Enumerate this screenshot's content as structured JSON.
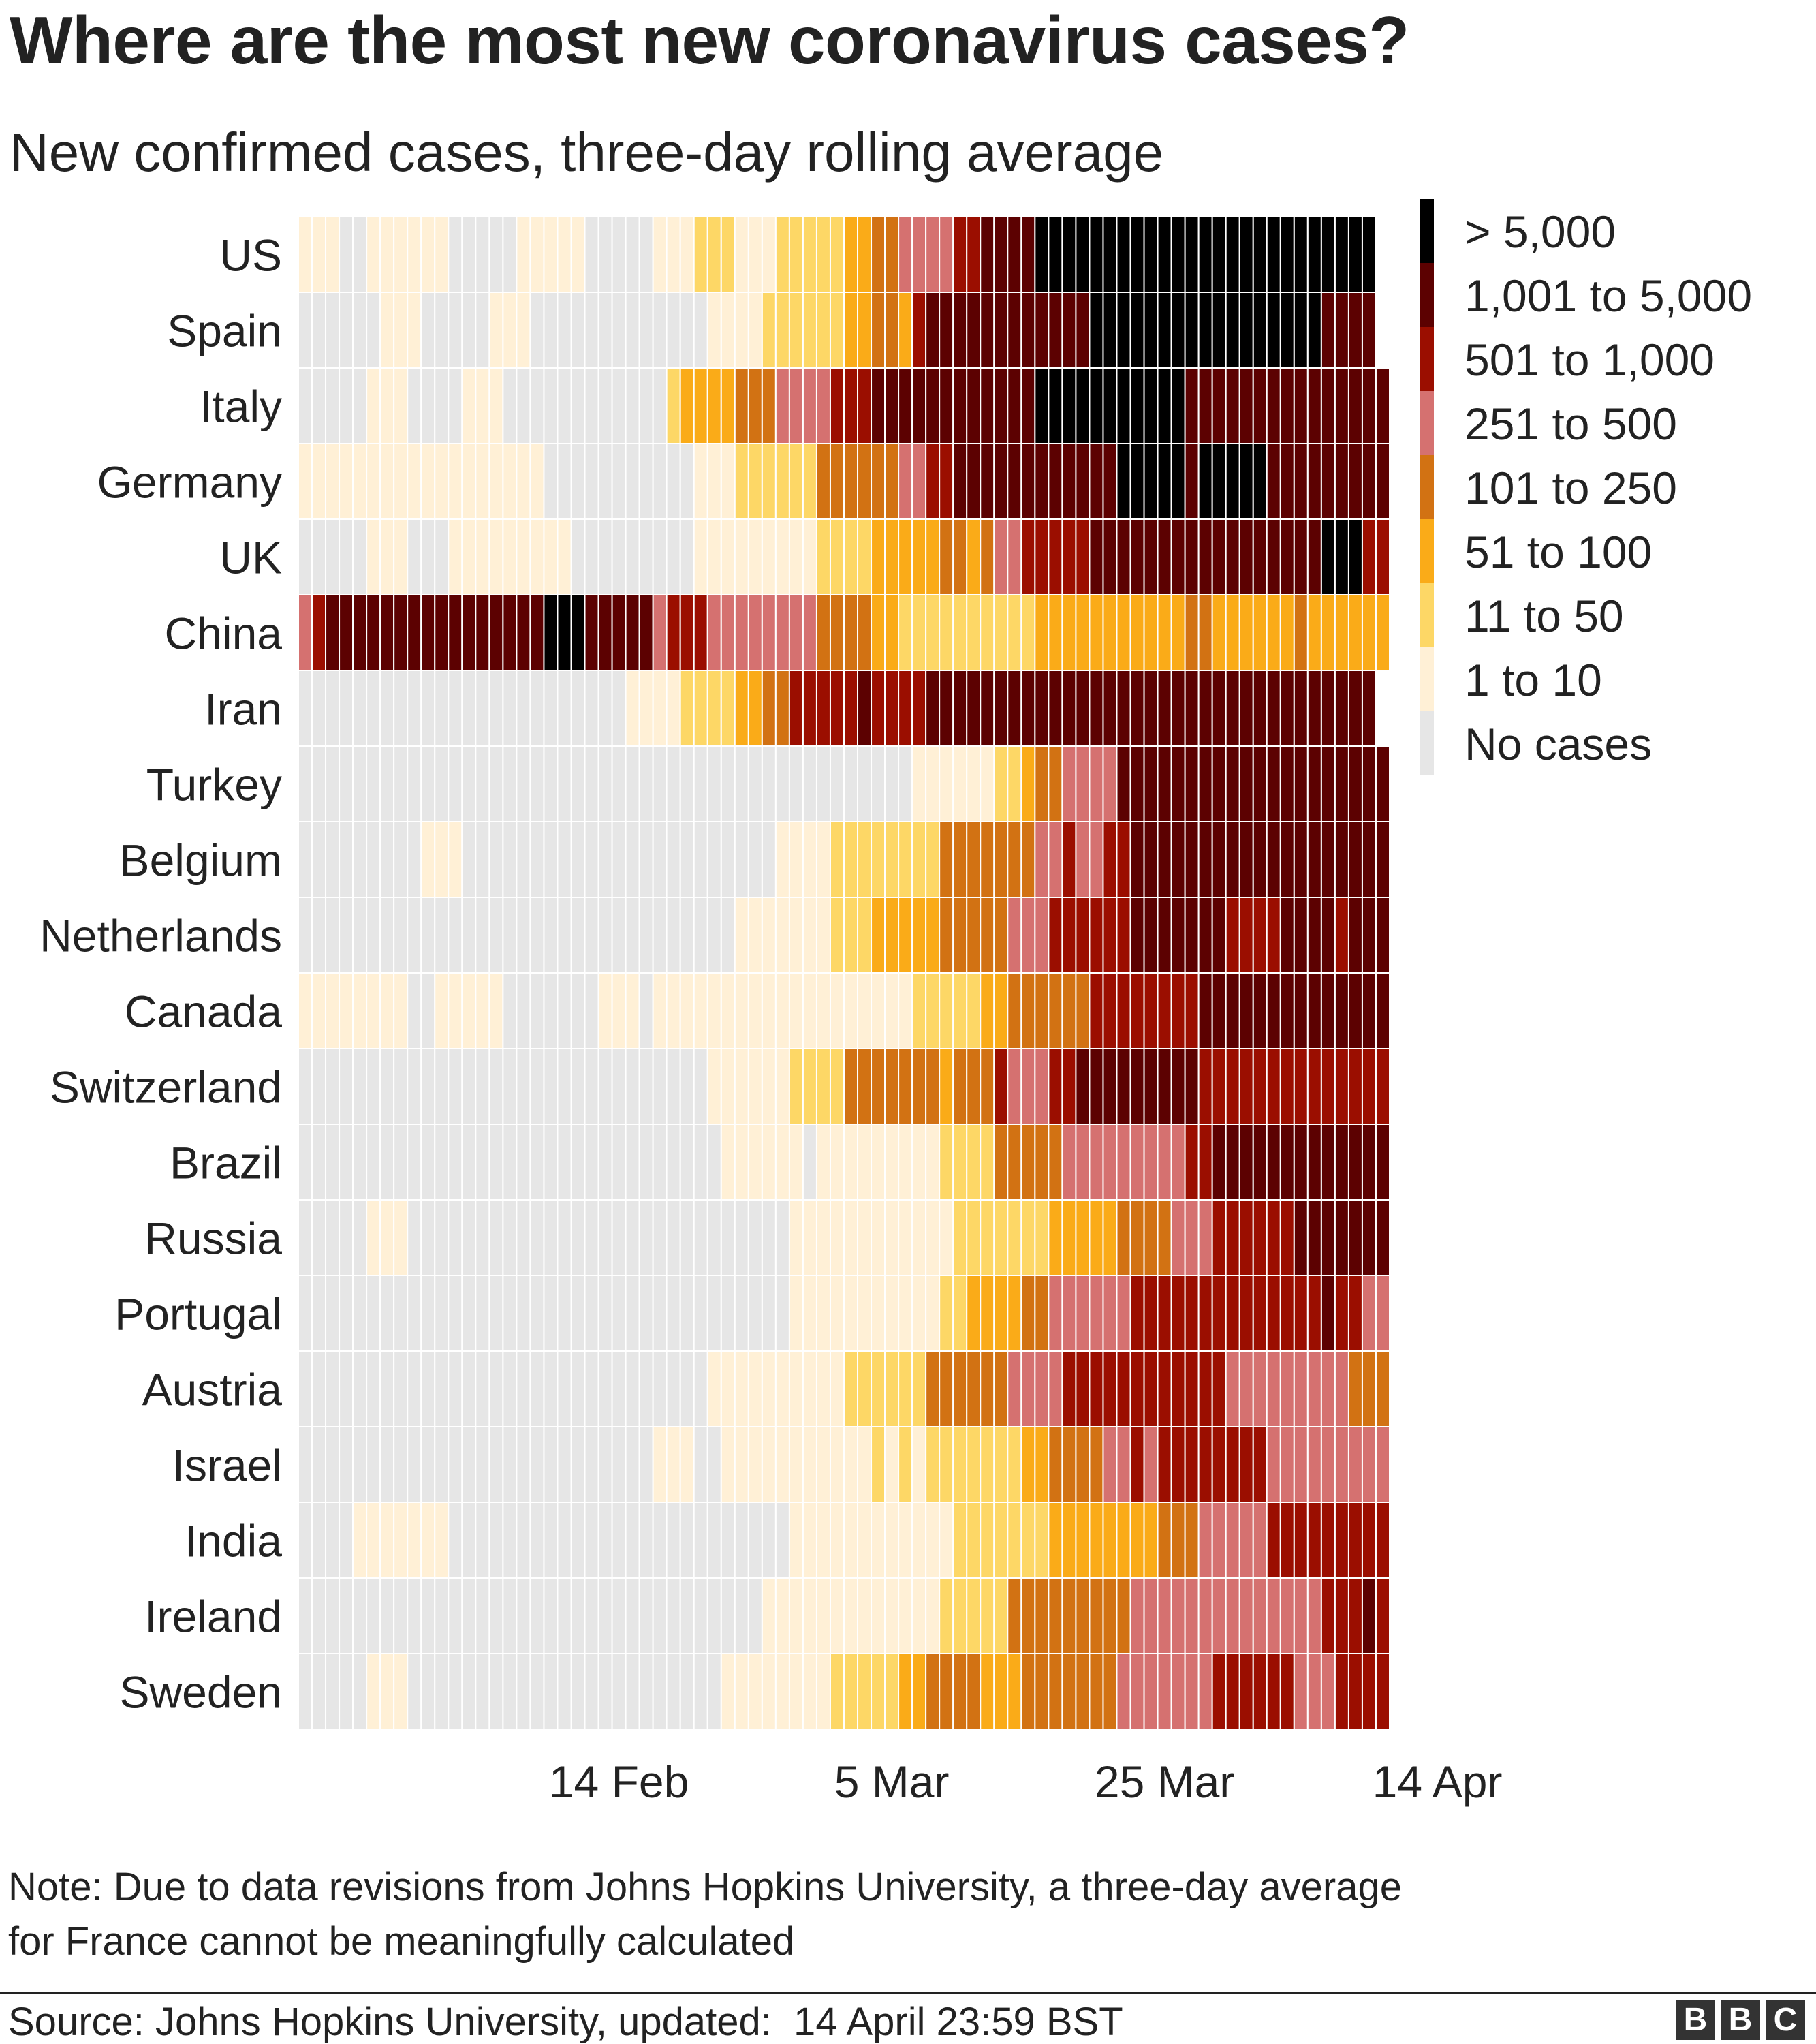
{
  "title": "Where are the most new coronavirus cases?",
  "subtitle": "New confirmed cases, three-day rolling average",
  "note_lines": [
    "Note: Due to data revisions from Johns Hopkins University, a three-day average",
    "for France cannot be meaningfully calculated"
  ],
  "source": "Source: Johns Hopkins University, updated:  14 April 23:59 BST",
  "logo": [
    "B",
    "B",
    "C"
  ],
  "colors": {
    "cat0": "#e6e6e6",
    "cat1": "#fff0d6",
    "cat2": "#fdd766",
    "cat3": "#faab18",
    "cat4": "#d27213",
    "cat5": "#d57170",
    "cat6": "#9b0e00",
    "cat7": "#5c0101",
    "cat8": "#000000"
  },
  "chart_data": {
    "type": "heatmap",
    "xlabel": "",
    "ylabel": "",
    "x_ticks": [
      "14 Feb",
      "5 Mar",
      "25 Mar",
      "14 Apr"
    ],
    "x_range": [
      "22 Jan",
      "14 Apr"
    ],
    "legend": [
      {
        "level": 8,
        "label": "> 5,000"
      },
      {
        "level": 7,
        "label": "1,001 to 5,000"
      },
      {
        "level": 6,
        "label": "501 to 1,000"
      },
      {
        "level": 5,
        "label": "251 to 500"
      },
      {
        "level": 4,
        "label": "101 to 250"
      },
      {
        "level": 3,
        "label": "51 to 100"
      },
      {
        "level": 2,
        "label": "11 to 50"
      },
      {
        "level": 1,
        "label": "1 to 10"
      },
      {
        "level": 0,
        "label": "No cases"
      }
    ],
    "rows": [
      {
        "country": "US",
        "runs": [
          [
            3,
            1
          ],
          [
            2,
            0
          ],
          [
            6,
            1
          ],
          [
            5,
            0
          ],
          [
            5,
            1
          ],
          [
            5,
            0
          ],
          [
            3,
            1
          ],
          [
            3,
            2
          ],
          [
            3,
            1
          ],
          [
            5,
            2
          ],
          [
            2,
            3
          ],
          [
            2,
            4
          ],
          [
            4,
            5
          ],
          [
            2,
            6
          ],
          [
            4,
            7
          ],
          [
            25,
            8
          ]
        ]
      },
      {
        "country": "Spain",
        "runs": [
          [
            6,
            0
          ],
          [
            3,
            1
          ],
          [
            5,
            0
          ],
          [
            3,
            1
          ],
          [
            13,
            0
          ],
          [
            4,
            1
          ],
          [
            6,
            2
          ],
          [
            2,
            3
          ],
          [
            2,
            4
          ],
          [
            1,
            3
          ],
          [
            1,
            6
          ],
          [
            12,
            7
          ],
          [
            17,
            8
          ],
          [
            4,
            7
          ]
        ]
      },
      {
        "country": "Italy",
        "runs": [
          [
            5,
            0
          ],
          [
            3,
            1
          ],
          [
            4,
            0
          ],
          [
            3,
            1
          ],
          [
            12,
            0
          ],
          [
            1,
            2
          ],
          [
            4,
            3
          ],
          [
            3,
            4
          ],
          [
            4,
            5
          ],
          [
            3,
            6
          ],
          [
            12,
            7
          ],
          [
            11,
            8
          ],
          [
            15,
            7
          ]
        ]
      },
      {
        "country": "Germany",
        "runs": [
          [
            11,
            1
          ],
          [
            7,
            1
          ],
          [
            11,
            0
          ],
          [
            3,
            1
          ],
          [
            6,
            2
          ],
          [
            6,
            4
          ],
          [
            2,
            5
          ],
          [
            2,
            6
          ],
          [
            12,
            7
          ],
          [
            5,
            8
          ],
          [
            1,
            7
          ],
          [
            5,
            8
          ],
          [
            9,
            7
          ]
        ]
      },
      {
        "country": "UK",
        "runs": [
          [
            5,
            0
          ],
          [
            3,
            1
          ],
          [
            3,
            0
          ],
          [
            9,
            1
          ],
          [
            9,
            0
          ],
          [
            9,
            1
          ],
          [
            4,
            2
          ],
          [
            5,
            3
          ],
          [
            2,
            4
          ],
          [
            1,
            3
          ],
          [
            1,
            4
          ],
          [
            2,
            5
          ],
          [
            5,
            6
          ],
          [
            17,
            7
          ],
          [
            3,
            8
          ],
          [
            2,
            6
          ]
        ]
      },
      {
        "country": "China",
        "runs": [
          [
            1,
            5
          ],
          [
            1,
            6
          ],
          [
            16,
            7
          ],
          [
            3,
            8
          ],
          [
            5,
            7
          ],
          [
            1,
            5
          ],
          [
            3,
            6
          ],
          [
            8,
            5
          ],
          [
            4,
            4
          ],
          [
            2,
            3
          ],
          [
            10,
            2
          ],
          [
            11,
            3
          ],
          [
            2,
            4
          ],
          [
            6,
            3
          ],
          [
            1,
            4
          ],
          [
            7,
            3
          ]
        ]
      },
      {
        "country": "Iran",
        "runs": [
          [
            24,
            0
          ],
          [
            4,
            1
          ],
          [
            4,
            2
          ],
          [
            2,
            3
          ],
          [
            2,
            4
          ],
          [
            5,
            6
          ],
          [
            1,
            7
          ],
          [
            4,
            6
          ],
          [
            33,
            7
          ]
        ]
      },
      {
        "country": "Turkey",
        "runs": [
          [
            45,
            0
          ],
          [
            6,
            1
          ],
          [
            2,
            2
          ],
          [
            1,
            3
          ],
          [
            2,
            4
          ],
          [
            4,
            5
          ],
          [
            20,
            7
          ]
        ]
      },
      {
        "country": "Belgium",
        "runs": [
          [
            9,
            0
          ],
          [
            3,
            1
          ],
          [
            23,
            0
          ],
          [
            4,
            1
          ],
          [
            8,
            2
          ],
          [
            7,
            4
          ],
          [
            2,
            5
          ],
          [
            1,
            6
          ],
          [
            2,
            5
          ],
          [
            2,
            6
          ],
          [
            20,
            7
          ]
        ]
      },
      {
        "country": "Netherlands",
        "runs": [
          [
            32,
            0
          ],
          [
            7,
            1
          ],
          [
            3,
            2
          ],
          [
            5,
            3
          ],
          [
            5,
            4
          ],
          [
            3,
            5
          ],
          [
            6,
            6
          ],
          [
            7,
            7
          ],
          [
            4,
            6
          ],
          [
            4,
            7
          ],
          [
            1,
            6
          ],
          [
            4,
            7
          ]
        ]
      },
      {
        "country": "Canada",
        "runs": [
          [
            8,
            1
          ],
          [
            2,
            0
          ],
          [
            5,
            1
          ],
          [
            7,
            0
          ],
          [
            3,
            1
          ],
          [
            1,
            0
          ],
          [
            19,
            1
          ],
          [
            5,
            2
          ],
          [
            2,
            3
          ],
          [
            6,
            4
          ],
          [
            8,
            6
          ],
          [
            14,
            7
          ]
        ]
      },
      {
        "country": "Switzerland",
        "runs": [
          [
            30,
            0
          ],
          [
            6,
            1
          ],
          [
            4,
            2
          ],
          [
            7,
            4
          ],
          [
            1,
            3
          ],
          [
            3,
            4
          ],
          [
            1,
            6
          ],
          [
            3,
            5
          ],
          [
            2,
            6
          ],
          [
            9,
            7
          ],
          [
            8,
            6
          ],
          [
            9,
            6
          ],
          [
            3,
            5
          ]
        ]
      },
      {
        "country": "Brazil",
        "runs": [
          [
            31,
            0
          ],
          [
            6,
            1
          ],
          [
            1,
            0
          ],
          [
            9,
            1
          ],
          [
            4,
            2
          ],
          [
            5,
            4
          ],
          [
            9,
            5
          ],
          [
            2,
            6
          ],
          [
            13,
            7
          ]
        ]
      },
      {
        "country": "Russia",
        "runs": [
          [
            5,
            0
          ],
          [
            3,
            1
          ],
          [
            28,
            0
          ],
          [
            12,
            1
          ],
          [
            7,
            2
          ],
          [
            5,
            3
          ],
          [
            4,
            4
          ],
          [
            3,
            5
          ],
          [
            6,
            6
          ],
          [
            7,
            7
          ]
        ]
      },
      {
        "country": "Portugal",
        "runs": [
          [
            36,
            0
          ],
          [
            11,
            1
          ],
          [
            2,
            2
          ],
          [
            4,
            3
          ],
          [
            2,
            4
          ],
          [
            6,
            5
          ],
          [
            14,
            6
          ],
          [
            1,
            7
          ],
          [
            2,
            6
          ],
          [
            2,
            5
          ]
        ]
      },
      {
        "country": "Austria",
        "runs": [
          [
            30,
            0
          ],
          [
            10,
            1
          ],
          [
            6,
            2
          ],
          [
            6,
            4
          ],
          [
            4,
            5
          ],
          [
            12,
            6
          ],
          [
            9,
            5
          ],
          [
            3,
            4
          ]
        ]
      },
      {
        "country": "Israel",
        "runs": [
          [
            26,
            0
          ],
          [
            3,
            1
          ],
          [
            2,
            0
          ],
          [
            11,
            1
          ],
          [
            1,
            2
          ],
          [
            1,
            1
          ],
          [
            1,
            2
          ],
          [
            1,
            1
          ],
          [
            7,
            2
          ],
          [
            2,
            3
          ],
          [
            4,
            4
          ],
          [
            2,
            5
          ],
          [
            1,
            6
          ],
          [
            1,
            5
          ],
          [
            8,
            6
          ],
          [
            10,
            5
          ]
        ]
      },
      {
        "country": "India",
        "runs": [
          [
            4,
            0
          ],
          [
            7,
            1
          ],
          [
            25,
            0
          ],
          [
            12,
            1
          ],
          [
            7,
            2
          ],
          [
            8,
            3
          ],
          [
            3,
            4
          ],
          [
            5,
            5
          ],
          [
            9,
            6
          ],
          [
            1,
            7
          ]
        ]
      },
      {
        "country": "Ireland",
        "runs": [
          [
            34,
            0
          ],
          [
            13,
            1
          ],
          [
            5,
            2
          ],
          [
            9,
            4
          ],
          [
            14,
            5
          ],
          [
            3,
            6
          ],
          [
            1,
            7
          ],
          [
            2,
            6
          ]
        ]
      },
      {
        "country": "Sweden",
        "runs": [
          [
            5,
            0
          ],
          [
            3,
            1
          ],
          [
            23,
            0
          ],
          [
            8,
            1
          ],
          [
            5,
            2
          ],
          [
            2,
            3
          ],
          [
            4,
            4
          ],
          [
            3,
            3
          ],
          [
            7,
            4
          ],
          [
            7,
            5
          ],
          [
            6,
            6
          ],
          [
            3,
            5
          ],
          [
            4,
            6
          ],
          [
            3,
            5
          ]
        ]
      }
    ]
  }
}
